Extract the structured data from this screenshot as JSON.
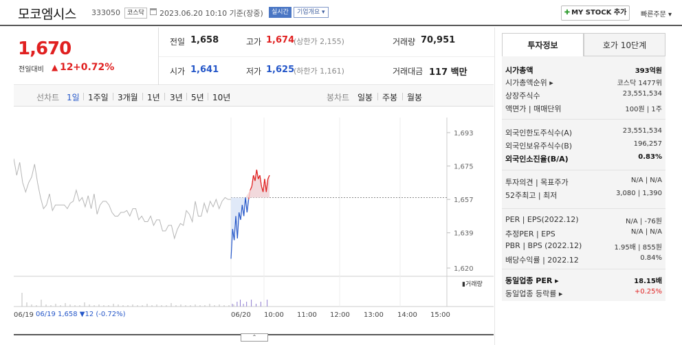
{
  "header": {
    "stock_name": "모코엠시스",
    "stock_code": "333050",
    "market": "코스닥",
    "datetime": "2023.06.20 10:10 기준(장중)",
    "realtime_label": "실시간",
    "company_label": "기업개요 ▾",
    "mystock_label": "MY STOCK 추가",
    "quick_order_label": "빠른주문 ▾"
  },
  "summary": {
    "price": "1,670",
    "change_label": "전일대비",
    "change_arrow": "▲",
    "change_value": "12",
    "change_pct": "+0.72%",
    "prev_label": "전일",
    "prev_value": "1,658",
    "high_label": "고가",
    "high_value": "1,674",
    "upper_limit": "(상한가 2,155)",
    "volume_label": "거래량",
    "volume_value": "70,951",
    "open_label": "시가",
    "open_value": "1,641",
    "low_label": "저가",
    "low_value": "1,625",
    "lower_limit": "(하한가 1,161)",
    "amount_label": "거래대금",
    "amount_value": "117 백만"
  },
  "toolbar": {
    "line_chart": "선차트",
    "periods": [
      "1일",
      "1주일",
      "3개월",
      "1년",
      "3년",
      "5년",
      "10년"
    ],
    "candle_chart": "봉차트",
    "candles": [
      "일봉",
      "주봉",
      "월봉"
    ]
  },
  "chart_data": {
    "type": "line",
    "y_ticks": [
      "1,693",
      "1,675",
      "1,657",
      "1,639",
      "1,620"
    ],
    "ylim": [
      1620,
      1693
    ],
    "prev_close": 1658,
    "x_labels": [
      "06/19",
      "06/20",
      "10:00",
      "11:00",
      "12:00",
      "13:00",
      "14:00",
      "15:00"
    ],
    "volume_label": "▮거래량",
    "footer_text": "06/19  1,658 ▼12 (-0.72%)",
    "series": [
      {
        "values": [
          1679,
          1670,
          1677,
          1666,
          1661,
          1666,
          1669,
          1676,
          1666,
          1658,
          1652,
          1654,
          1660,
          1651,
          1654,
          1654,
          1654,
          1654,
          1652,
          1655,
          1656,
          1662,
          1656,
          1658,
          1653,
          1659,
          1652,
          1660,
          1649,
          1654,
          1656,
          1656,
          1654,
          1650,
          1648,
          1648,
          1650,
          1650,
          1651,
          1648,
          1652,
          1652,
          1646,
          1648,
          1645,
          1645,
          1648,
          1643,
          1646,
          1646,
          1640,
          1640,
          1643,
          1643,
          1636,
          1641,
          1644,
          1643,
          1651,
          1649,
          1645,
          1656,
          1648,
          1648,
          1655,
          1650,
          1656,
          1653,
          1657,
          1652,
          1656,
          1658,
          1657,
          1657
        ]
      },
      {
        "values": [
          1625,
          1641,
          1635,
          1648,
          1636,
          1650,
          1646,
          1654,
          1648,
          1658,
          1650,
          1657,
          1662,
          1664,
          1670,
          1667,
          1673,
          1668,
          1670,
          1664,
          1661,
          1668,
          1661,
          1668,
          1670
        ]
      }
    ]
  },
  "side": {
    "tab_info": "투자정보",
    "tab_order": "호가 10단계",
    "rows": [
      {
        "label": "시가총액",
        "value": "393억원"
      },
      {
        "label": "시가총액순위 ▸",
        "value": "코스닥 1477위"
      },
      {
        "label": "상장주식수",
        "value": "23,551,534"
      },
      {
        "label": "액면가 | 매매단위",
        "value": "100원 | 1주"
      },
      {
        "label": "외국인한도주식수(A)",
        "value": "23,551,534"
      },
      {
        "label": "외국인보유주식수(B)",
        "value": "196,257"
      },
      {
        "label": "외국인소진율(B/A)",
        "value": "0.83%"
      },
      {
        "label": "투자의견 | 목표주가",
        "value": "N/A | N/A"
      },
      {
        "label": "52주최고 | 최저",
        "value": "3,080 | 1,390"
      },
      {
        "label": "PER | EPS(2022.12)",
        "value": "N/A | -76원"
      },
      {
        "label": "추정PER | EPS",
        "value": "N/A | N/A"
      },
      {
        "label": "PBR | BPS (2022.12)",
        "value": "1.95배 | 855원"
      },
      {
        "label": "배당수익률 | 2022.12",
        "value": "0.84%"
      },
      {
        "label": "동일업종 PER ▸",
        "value": "18.15배"
      },
      {
        "label": "동일업종 등락률 ▸",
        "value": "+0.25%"
      }
    ]
  },
  "colors": {
    "up": "#e02020",
    "down": "#2456c8",
    "accent": "#4a76c4"
  },
  "collapse_label": "⌃"
}
